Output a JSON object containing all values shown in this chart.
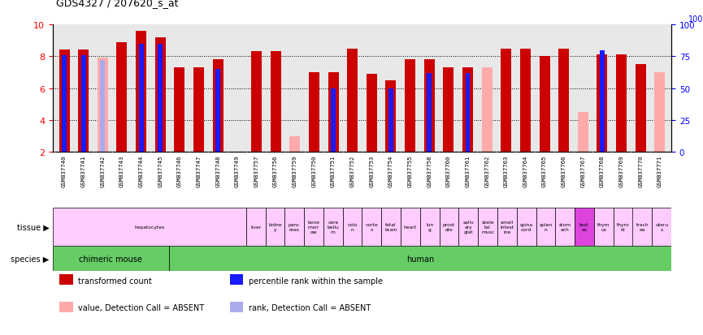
{
  "title": "GDS4327 / 207620_s_at",
  "gsm_ids": [
    "GSM837740",
    "GSM837741",
    "GSM837742",
    "GSM837743",
    "GSM837744",
    "GSM837745",
    "GSM837746",
    "GSM837747",
    "GSM837748",
    "GSM837749",
    "GSM837757",
    "GSM837756",
    "GSM837759",
    "GSM837750",
    "GSM837751",
    "GSM837752",
    "GSM837753",
    "GSM837754",
    "GSM837755",
    "GSM837758",
    "GSM837760",
    "GSM837761",
    "GSM837762",
    "GSM837763",
    "GSM837764",
    "GSM837765",
    "GSM837766",
    "GSM837767",
    "GSM837768",
    "GSM837769",
    "GSM837770",
    "GSM837771"
  ],
  "red_values": [
    8.45,
    8.45,
    null,
    8.9,
    9.6,
    9.2,
    7.3,
    7.3,
    7.8,
    null,
    8.3,
    8.3,
    null,
    7.0,
    7.0,
    8.5,
    6.9,
    6.5,
    7.8,
    7.8,
    7.3,
    7.3,
    null,
    8.5,
    8.5,
    8.0,
    8.5,
    null,
    8.1,
    8.1,
    7.5,
    null
  ],
  "pink_values": [
    null,
    null,
    7.9,
    null,
    null,
    null,
    null,
    null,
    null,
    2.0,
    null,
    null,
    3.0,
    null,
    null,
    null,
    null,
    null,
    null,
    null,
    null,
    null,
    7.3,
    null,
    null,
    null,
    null,
    4.5,
    null,
    null,
    null,
    7.0
  ],
  "blue_pcts": [
    76,
    76,
    null,
    null,
    85,
    85,
    null,
    null,
    65,
    null,
    null,
    null,
    null,
    null,
    50,
    null,
    null,
    50,
    null,
    62,
    null,
    62,
    null,
    null,
    null,
    null,
    null,
    null,
    80,
    null,
    null,
    null
  ],
  "lightblue_pcts": [
    null,
    null,
    72,
    null,
    null,
    null,
    null,
    null,
    null,
    null,
    null,
    null,
    null,
    null,
    null,
    null,
    null,
    null,
    null,
    null,
    null,
    null,
    null,
    null,
    null,
    null,
    null,
    null,
    null,
    null,
    null,
    null
  ],
  "ylim": [
    2,
    10
  ],
  "yticks_left": [
    2,
    4,
    6,
    8,
    10
  ],
  "yticks_right": [
    0,
    25,
    50,
    75,
    100
  ],
  "gridlines": [
    4,
    6,
    8
  ],
  "bar_width": 0.55,
  "blue_bar_width": 0.25,
  "red_color": "#cc0000",
  "pink_color": "#ffaaaa",
  "blue_color": "#1a1aff",
  "lightblue_color": "#aaaaee",
  "bg_color": "#e8e8e8",
  "species": [
    {
      "label": "chimeric mouse",
      "start": 0,
      "end": 6
    },
    {
      "label": "human",
      "start": 6,
      "end": 32
    }
  ],
  "tissue": [
    {
      "label": "hepatocytes",
      "start": 0,
      "end": 10,
      "color": "#ffccff"
    },
    {
      "label": "liver",
      "start": 10,
      "end": 11,
      "color": "#ffccff"
    },
    {
      "label": "kidne\ny",
      "start": 11,
      "end": 12,
      "color": "#ffccff"
    },
    {
      "label": "panc\nreas",
      "start": 12,
      "end": 13,
      "color": "#ffccff"
    },
    {
      "label": "bone\nmarr\now",
      "start": 13,
      "end": 14,
      "color": "#ffccff"
    },
    {
      "label": "cere\nbellu\nm",
      "start": 14,
      "end": 15,
      "color": "#ffccff"
    },
    {
      "label": "colo\nn",
      "start": 15,
      "end": 16,
      "color": "#ffccff"
    },
    {
      "label": "corte\nx",
      "start": 16,
      "end": 17,
      "color": "#ffccff"
    },
    {
      "label": "fetal\nbrain",
      "start": 17,
      "end": 18,
      "color": "#ffccff"
    },
    {
      "label": "heart",
      "start": 18,
      "end": 19,
      "color": "#ffccff"
    },
    {
      "label": "lun\ng",
      "start": 19,
      "end": 20,
      "color": "#ffccff"
    },
    {
      "label": "prost\nate",
      "start": 20,
      "end": 21,
      "color": "#ffccff"
    },
    {
      "label": "saliv\nary\nglat",
      "start": 21,
      "end": 22,
      "color": "#ffccff"
    },
    {
      "label": "skele\ntal\nmusc",
      "start": 22,
      "end": 23,
      "color": "#ffccff"
    },
    {
      "label": "small\nintest\nine",
      "start": 23,
      "end": 24,
      "color": "#ffccff"
    },
    {
      "label": "spina\ncord",
      "start": 24,
      "end": 25,
      "color": "#ffccff"
    },
    {
      "label": "splen\nn",
      "start": 25,
      "end": 26,
      "color": "#ffccff"
    },
    {
      "label": "stom\nach",
      "start": 26,
      "end": 27,
      "color": "#ffccff"
    },
    {
      "label": "test\nes",
      "start": 27,
      "end": 28,
      "color": "#dd44dd"
    },
    {
      "label": "thym\nus",
      "start": 28,
      "end": 29,
      "color": "#ffccff"
    },
    {
      "label": "thyro\nid",
      "start": 29,
      "end": 30,
      "color": "#ffccff"
    },
    {
      "label": "trach\nea",
      "start": 30,
      "end": 31,
      "color": "#ffccff"
    },
    {
      "label": "uteru\ns",
      "start": 31,
      "end": 32,
      "color": "#ffccff"
    }
  ],
  "legend": [
    {
      "label": "transformed count",
      "color": "#cc0000"
    },
    {
      "label": "percentile rank within the sample",
      "color": "#1a1aff"
    },
    {
      "label": "value, Detection Call = ABSENT",
      "color": "#ffaaaa"
    },
    {
      "label": "rank, Detection Call = ABSENT",
      "color": "#aaaaee"
    }
  ]
}
